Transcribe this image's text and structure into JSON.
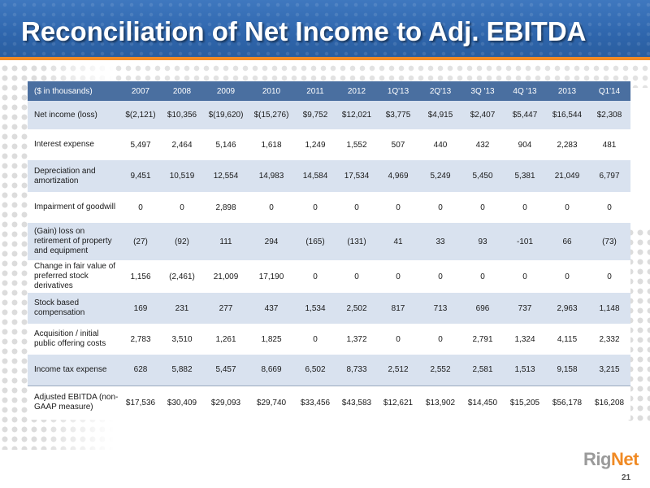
{
  "slide": {
    "title": "Reconciliation of Net Income to Adj. EBITDA",
    "page_number": "21",
    "logo": {
      "text_1": "Rig",
      "text_2": "Net"
    },
    "colors": {
      "header_blue": "#2f66ad",
      "accent_orange": "#f08a24",
      "table_header": "#4a6fa0",
      "row_band": "#d9e2ef"
    }
  },
  "table": {
    "columns": [
      "($ in thousands)",
      "2007",
      "2008",
      "2009",
      "2010",
      "2011",
      "2012",
      "1Q'13",
      "2Q'13",
      "3Q '13",
      "4Q '13",
      "2013",
      "Q1'14"
    ],
    "rows": [
      {
        "label": "Net income (loss)",
        "values": [
          "$(2,121)",
          "$10,356",
          "$(19,620)",
          "$(15,276)",
          "$9,752",
          "$12,021",
          "$3,775",
          "$4,915",
          "$2,407",
          "$5,447",
          "$16,544",
          "$2,308"
        ]
      },
      {
        "label": "Interest expense",
        "values": [
          "5,497",
          "2,464",
          "5,146",
          "1,618",
          "1,249",
          "1,552",
          "507",
          "440",
          "432",
          "904",
          "2,283",
          "481"
        ]
      },
      {
        "label": "Depreciation and amortization",
        "values": [
          "9,451",
          "10,519",
          "12,554",
          "14,983",
          "14,584",
          "17,534",
          "4,969",
          "5,249",
          "5,450",
          "5,381",
          "21,049",
          "6,797"
        ]
      },
      {
        "label": "Impairment of goodwill",
        "values": [
          "0",
          "0",
          "2,898",
          "0",
          "0",
          "0",
          "0",
          "0",
          "0",
          "0",
          "0",
          "0"
        ]
      },
      {
        "label": "(Gain) loss on retirement of property and equipment",
        "values": [
          "(27)",
          "(92)",
          "111",
          "294",
          "(165)",
          "(131)",
          "41",
          "33",
          "93",
          "-101",
          "66",
          "(73)"
        ]
      },
      {
        "label": "Change in fair value of preferred stock derivatives",
        "values": [
          "1,156",
          "(2,461)",
          "21,009",
          "17,190",
          "0",
          "0",
          "0",
          "0",
          "0",
          "0",
          "0",
          "0"
        ]
      },
      {
        "label": "Stock based compensation",
        "values": [
          "169",
          "231",
          "277",
          "437",
          "1,534",
          "2,502",
          "817",
          "713",
          "696",
          "737",
          "2,963",
          "1,148"
        ]
      },
      {
        "label": "Acquisition / initial public offering costs",
        "values": [
          "2,783",
          "3,510",
          "1,261",
          "1,825",
          "0",
          "1,372",
          "0",
          "0",
          "2,791",
          "1,324",
          "4,115",
          "2,332"
        ]
      },
      {
        "label": "Income tax expense",
        "values": [
          "628",
          "5,882",
          "5,457",
          "8,669",
          "6,502",
          "8,733",
          "2,512",
          "2,552",
          "2,581",
          "1,513",
          "9,158",
          "3,215"
        ]
      },
      {
        "label": "Adjusted EBITDA (non-GAAP measure)",
        "values": [
          "$17,536",
          "$30,409",
          "$29,093",
          "$29,740",
          "$33,456",
          "$43,583",
          "$12,621",
          "$13,902",
          "$14,450",
          "$15,205",
          "$56,178",
          "$16,208"
        ]
      }
    ]
  }
}
